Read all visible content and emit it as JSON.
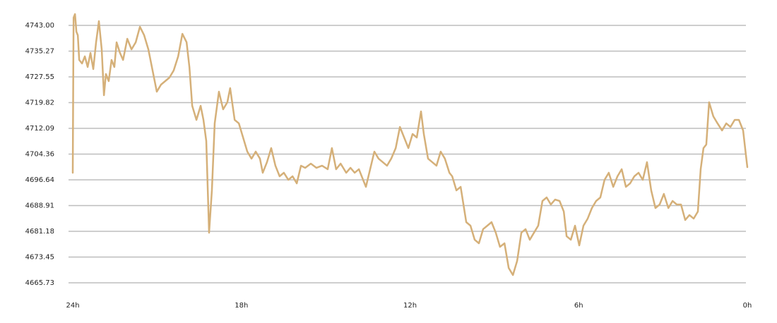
{
  "chart_data": {
    "type": "line",
    "color": "#d5b079",
    "grid": true,
    "xlim": [
      24,
      0
    ],
    "xticks": [
      {
        "value": 24,
        "label": "24h"
      },
      {
        "value": 18,
        "label": "18h"
      },
      {
        "value": 12,
        "label": "12h"
      },
      {
        "value": 6,
        "label": "6h"
      },
      {
        "value": 0,
        "label": "0h"
      }
    ],
    "ylim": [
      4665.73,
      4747
    ],
    "yticks": [
      {
        "value": 4743,
        "label": "4743.00"
      },
      4735.27,
      4727.55,
      4719.82,
      4712.09,
      4704.36,
      4696.64,
      4688.91,
      4681.18,
      4673.45,
      4665.73
    ],
    "x": [
      24.0,
      23.98,
      23.97,
      23.92,
      23.87,
      23.82,
      23.77,
      23.67,
      23.57,
      23.47,
      23.37,
      23.27,
      23.17,
      23.07,
      22.97,
      22.89,
      22.82,
      22.72,
      22.62,
      22.52,
      22.44,
      22.32,
      22.21,
      22.06,
      21.91,
      21.76,
      21.61,
      21.46,
      21.31,
      21.16,
      21.01,
      20.86,
      20.71,
      20.56,
      20.41,
      20.25,
      20.1,
      19.95,
      19.85,
      19.75,
      19.6,
      19.45,
      19.35,
      19.25,
      19.15,
      19.05,
      18.95,
      18.8,
      18.65,
      18.5,
      18.4,
      18.24,
      18.09,
      17.94,
      17.79,
      17.64,
      17.49,
      17.34,
      17.24,
      17.09,
      16.94,
      16.79,
      16.64,
      16.49,
      16.33,
      16.18,
      16.03,
      15.88,
      15.73,
      15.53,
      15.33,
      15.13,
      14.93,
      14.78,
      14.63,
      14.47,
      14.27,
      14.12,
      13.97,
      13.82,
      13.67,
      13.57,
      13.42,
      13.27,
      13.12,
      12.97,
      12.82,
      12.67,
      12.51,
      12.36,
      12.21,
      12.06,
      11.91,
      11.76,
      11.61,
      11.51,
      11.36,
      11.21,
      11.06,
      10.91,
      10.76,
      10.6,
      10.5,
      10.35,
      10.2,
      10.1,
      10.0,
      9.85,
      9.7,
      9.55,
      9.4,
      9.25,
      9.1,
      8.95,
      8.8,
      8.64,
      8.49,
      8.34,
      8.19,
      8.04,
      7.89,
      7.74,
      7.59,
      7.44,
      7.29,
      7.14,
      6.99,
      6.84,
      6.68,
      6.53,
      6.43,
      6.28,
      6.13,
      5.98,
      5.83,
      5.68,
      5.53,
      5.38,
      5.23,
      5.08,
      4.93,
      4.77,
      4.62,
      4.47,
      4.32,
      4.17,
      4.02,
      3.87,
      3.72,
      3.57,
      3.42,
      3.27,
      3.12,
      2.97,
      2.81,
      2.66,
      2.51,
      2.36,
      2.21,
      2.06,
      1.91,
      1.76,
      1.66,
      1.56,
      1.46,
      1.36,
      1.21,
      1.06,
      0.9,
      0.75,
      0.6,
      0.45,
      0.3,
      0.15,
      0.05,
      0.0
    ],
    "values": [
      4698.76,
      4731.57,
      4745.33,
      4746.39,
      4741.09,
      4740.04,
      4732.63,
      4731.57,
      4733.69,
      4730.51,
      4734.75,
      4729.88,
      4737.92,
      4744.27,
      4735.8,
      4722.04,
      4728.39,
      4726.27,
      4732.63,
      4730.51,
      4737.92,
      4734.75,
      4732.63,
      4738.98,
      4735.8,
      4737.92,
      4742.58,
      4740.04,
      4735.8,
      4729.45,
      4723.1,
      4725.22,
      4726.27,
      4727.33,
      4729.45,
      4733.69,
      4740.46,
      4737.92,
      4730.51,
      4718.87,
      4714.63,
      4718.87,
      4714.63,
      4708.29,
      4680.77,
      4693.47,
      4713.58,
      4723.1,
      4717.81,
      4719.93,
      4724.16,
      4714.63,
      4713.58,
      4709.34,
      4705.11,
      4703.0,
      4705.11,
      4703.0,
      4698.76,
      4701.94,
      4706.17,
      4700.88,
      4697.7,
      4698.76,
      4696.64,
      4697.7,
      4695.58,
      4700.88,
      4700.24,
      4701.51,
      4700.24,
      4700.88,
      4699.82,
      4706.17,
      4699.82,
      4701.51,
      4698.76,
      4700.24,
      4698.76,
      4699.82,
      4696.64,
      4694.53,
      4699.82,
      4705.11,
      4703.0,
      4701.94,
      4700.88,
      4703.0,
      4706.17,
      4712.52,
      4709.34,
      4706.17,
      4710.4,
      4709.34,
      4717.18,
      4710.4,
      4703.0,
      4701.94,
      4700.88,
      4705.11,
      4703.0,
      4698.76,
      4697.7,
      4693.47,
      4694.53,
      4689.23,
      4683.94,
      4682.88,
      4678.65,
      4677.59,
      4681.83,
      4682.88,
      4683.94,
      4680.77,
      4676.53,
      4677.59,
      4670.18,
      4668.06,
      4672.3,
      4680.77,
      4681.83,
      4678.65,
      4680.77,
      4682.88,
      4690.29,
      4691.35,
      4689.23,
      4690.71,
      4690.29,
      4687.12,
      4679.71,
      4678.65,
      4682.88,
      4676.96,
      4682.88,
      4685.0,
      4688.17,
      4690.29,
      4691.35,
      4696.64,
      4698.76,
      4694.53,
      4697.7,
      4699.82,
      4694.53,
      4695.58,
      4697.7,
      4698.76,
      4696.64,
      4701.94,
      4693.47,
      4688.17,
      4689.23,
      4692.41,
      4688.17,
      4690.29,
      4689.23,
      4689.23,
      4684.58,
      4686.06,
      4685.0,
      4687.12,
      4699.82,
      4706.17,
      4707.23,
      4719.93,
      4715.69,
      4713.58,
      4711.46,
      4713.58,
      4712.52,
      4714.63,
      4714.63,
      4711.46,
      4704.05,
      4700.45
    ]
  }
}
